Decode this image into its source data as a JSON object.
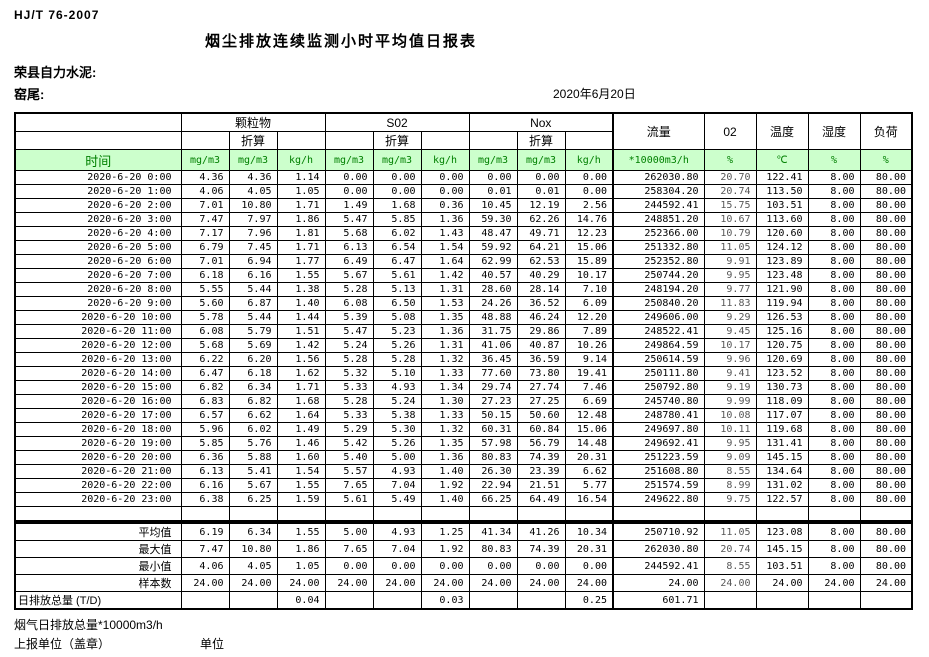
{
  "page": {
    "standard": "HJ/T  76-2007",
    "title": "烟尘排放连续监测小时平均值日报表",
    "company": "荣县自力水泥:",
    "stack": "窑尾:",
    "date": "2020年6月20日"
  },
  "table": {
    "time_header": "时间",
    "groups": [
      "颗粒物",
      "S02",
      "Nox"
    ],
    "converted_label": "折算",
    "flow_header": "流量",
    "o2_header": "02",
    "temp_header": "温度",
    "humidity_header": "湿度",
    "load_header": "负荷",
    "units": [
      "mg/m3",
      "mg/m3",
      "kg/h",
      "mg/m3",
      "mg/m3",
      "kg/h",
      "mg/m3",
      "mg/m3",
      "kg/h",
      "*10000m3/h",
      "%",
      "℃",
      "%",
      "%"
    ],
    "rows": [
      {
        "time": "2020-6-20 0:00",
        "values": [
          "4.36",
          "4.36",
          "1.14",
          "0.00",
          "0.00",
          "0.00",
          "0.00",
          "0.00",
          "0.00",
          "262030.80",
          "20.70",
          "122.41",
          "8.00",
          "80.00"
        ]
      },
      {
        "time": "2020-6-20 1:00",
        "values": [
          "4.06",
          "4.05",
          "1.05",
          "0.00",
          "0.00",
          "0.00",
          "0.01",
          "0.01",
          "0.00",
          "258304.20",
          "20.74",
          "113.50",
          "8.00",
          "80.00"
        ]
      },
      {
        "time": "2020-6-20 2:00",
        "values": [
          "7.01",
          "10.80",
          "1.71",
          "1.49",
          "1.68",
          "0.36",
          "10.45",
          "12.19",
          "2.56",
          "244592.41",
          "15.75",
          "103.51",
          "8.00",
          "80.00"
        ]
      },
      {
        "time": "2020-6-20 3:00",
        "values": [
          "7.47",
          "7.97",
          "1.86",
          "5.47",
          "5.85",
          "1.36",
          "59.30",
          "62.26",
          "14.76",
          "248851.20",
          "10.67",
          "113.60",
          "8.00",
          "80.00"
        ]
      },
      {
        "time": "2020-6-20 4:00",
        "values": [
          "7.17",
          "7.96",
          "1.81",
          "5.68",
          "6.02",
          "1.43",
          "48.47",
          "49.71",
          "12.23",
          "252366.00",
          "10.79",
          "120.60",
          "8.00",
          "80.00"
        ]
      },
      {
        "time": "2020-6-20 5:00",
        "values": [
          "6.79",
          "7.45",
          "1.71",
          "6.13",
          "6.54",
          "1.54",
          "59.92",
          "64.21",
          "15.06",
          "251332.80",
          "11.05",
          "124.12",
          "8.00",
          "80.00"
        ]
      },
      {
        "time": "2020-6-20 6:00",
        "values": [
          "7.01",
          "6.94",
          "1.77",
          "6.49",
          "6.47",
          "1.64",
          "62.99",
          "62.53",
          "15.89",
          "252352.80",
          "9.91",
          "123.89",
          "8.00",
          "80.00"
        ]
      },
      {
        "time": "2020-6-20 7:00",
        "values": [
          "6.18",
          "6.16",
          "1.55",
          "5.67",
          "5.61",
          "1.42",
          "40.57",
          "40.29",
          "10.17",
          "250744.20",
          "9.95",
          "123.48",
          "8.00",
          "80.00"
        ]
      },
      {
        "time": "2020-6-20 8:00",
        "values": [
          "5.55",
          "5.44",
          "1.38",
          "5.28",
          "5.13",
          "1.31",
          "28.60",
          "28.14",
          "7.10",
          "248194.20",
          "9.77",
          "121.90",
          "8.00",
          "80.00"
        ]
      },
      {
        "time": "2020-6-20 9:00",
        "values": [
          "5.60",
          "6.87",
          "1.40",
          "6.08",
          "6.50",
          "1.53",
          "24.26",
          "36.52",
          "6.09",
          "250840.20",
          "11.83",
          "119.94",
          "8.00",
          "80.00"
        ]
      },
      {
        "time": "2020-6-20 10:00",
        "values": [
          "5.78",
          "5.44",
          "1.44",
          "5.39",
          "5.08",
          "1.35",
          "48.88",
          "46.24",
          "12.20",
          "249606.00",
          "9.29",
          "126.53",
          "8.00",
          "80.00"
        ]
      },
      {
        "time": "2020-6-20 11:00",
        "values": [
          "6.08",
          "5.79",
          "1.51",
          "5.47",
          "5.23",
          "1.36",
          "31.75",
          "29.86",
          "7.89",
          "248522.41",
          "9.45",
          "125.16",
          "8.00",
          "80.00"
        ]
      },
      {
        "time": "2020-6-20 12:00",
        "values": [
          "5.68",
          "5.69",
          "1.42",
          "5.24",
          "5.26",
          "1.31",
          "41.06",
          "40.87",
          "10.26",
          "249864.59",
          "10.17",
          "120.75",
          "8.00",
          "80.00"
        ]
      },
      {
        "time": "2020-6-20 13:00",
        "values": [
          "6.22",
          "6.20",
          "1.56",
          "5.28",
          "5.28",
          "1.32",
          "36.45",
          "36.59",
          "9.14",
          "250614.59",
          "9.96",
          "120.69",
          "8.00",
          "80.00"
        ]
      },
      {
        "time": "2020-6-20 14:00",
        "values": [
          "6.47",
          "6.18",
          "1.62",
          "5.32",
          "5.10",
          "1.33",
          "77.60",
          "73.80",
          "19.41",
          "250111.80",
          "9.41",
          "123.52",
          "8.00",
          "80.00"
        ]
      },
      {
        "time": "2020-6-20 15:00",
        "values": [
          "6.82",
          "6.34",
          "1.71",
          "5.33",
          "4.93",
          "1.34",
          "29.74",
          "27.74",
          "7.46",
          "250792.80",
          "9.19",
          "130.73",
          "8.00",
          "80.00"
        ]
      },
      {
        "time": "2020-6-20 16:00",
        "values": [
          "6.83",
          "6.82",
          "1.68",
          "5.28",
          "5.24",
          "1.30",
          "27.23",
          "27.25",
          "6.69",
          "245740.80",
          "9.99",
          "118.09",
          "8.00",
          "80.00"
        ]
      },
      {
        "time": "2020-6-20 17:00",
        "values": [
          "6.57",
          "6.62",
          "1.64",
          "5.33",
          "5.38",
          "1.33",
          "50.15",
          "50.60",
          "12.48",
          "248780.41",
          "10.08",
          "117.07",
          "8.00",
          "80.00"
        ]
      },
      {
        "time": "2020-6-20 18:00",
        "values": [
          "5.96",
          "6.02",
          "1.49",
          "5.29",
          "5.30",
          "1.32",
          "60.31",
          "60.84",
          "15.06",
          "249697.80",
          "10.11",
          "119.68",
          "8.00",
          "80.00"
        ]
      },
      {
        "time": "2020-6-20 19:00",
        "values": [
          "5.85",
          "5.76",
          "1.46",
          "5.42",
          "5.26",
          "1.35",
          "57.98",
          "56.79",
          "14.48",
          "249692.41",
          "9.95",
          "131.41",
          "8.00",
          "80.00"
        ]
      },
      {
        "time": "2020-6-20 20:00",
        "values": [
          "6.36",
          "5.88",
          "1.60",
          "5.40",
          "5.00",
          "1.36",
          "80.83",
          "74.39",
          "20.31",
          "251223.59",
          "9.09",
          "145.15",
          "8.00",
          "80.00"
        ]
      },
      {
        "time": "2020-6-20 21:00",
        "values": [
          "6.13",
          "5.41",
          "1.54",
          "5.57",
          "4.93",
          "1.40",
          "26.30",
          "23.39",
          "6.62",
          "251608.80",
          "8.55",
          "134.64",
          "8.00",
          "80.00"
        ]
      },
      {
        "time": "2020-6-20 22:00",
        "values": [
          "6.16",
          "5.67",
          "1.55",
          "7.65",
          "7.04",
          "1.92",
          "22.94",
          "21.51",
          "5.77",
          "251574.59",
          "8.99",
          "131.02",
          "8.00",
          "80.00"
        ]
      },
      {
        "time": "2020-6-20 23:00",
        "values": [
          "6.38",
          "6.25",
          "1.59",
          "5.61",
          "5.49",
          "1.40",
          "66.25",
          "64.49",
          "16.54",
          "249622.80",
          "9.75",
          "122.57",
          "8.00",
          "80.00"
        ]
      }
    ],
    "summary_rows": [
      {
        "label": "平均值",
        "values": [
          "6.19",
          "6.34",
          "1.55",
          "5.00",
          "4.93",
          "1.25",
          "41.34",
          "41.26",
          "10.34",
          "250710.92",
          "11.05",
          "123.08",
          "8.00",
          "80.00"
        ]
      },
      {
        "label": "最大值",
        "values": [
          "7.47",
          "10.80",
          "1.86",
          "7.65",
          "7.04",
          "1.92",
          "80.83",
          "74.39",
          "20.31",
          "262030.80",
          "20.74",
          "145.15",
          "8.00",
          "80.00"
        ]
      },
      {
        "label": "最小值",
        "values": [
          "4.06",
          "4.05",
          "1.05",
          "0.00",
          "0.00",
          "0.00",
          "0.00",
          "0.00",
          "0.00",
          "244592.41",
          "8.55",
          "103.51",
          "8.00",
          "80.00"
        ]
      },
      {
        "label": "样本数",
        "values": [
          "24.00",
          "24.00",
          "24.00",
          "24.00",
          "24.00",
          "24.00",
          "24.00",
          "24.00",
          "24.00",
          "24.00",
          "24.00",
          "24.00",
          "24.00",
          "24.00"
        ]
      },
      {
        "label": "日排放总量 (T/D)",
        "values": [
          "",
          "",
          "0.04",
          "",
          "",
          "0.03",
          "",
          "",
          "0.25",
          "601.71",
          "",
          "",
          "",
          ""
        ]
      }
    ]
  },
  "footer": {
    "flow_total_note": "烟气日排放总量*10000m3/h",
    "report_unit_label": "上报单位（盖章）",
    "unit_label": "单位"
  }
}
